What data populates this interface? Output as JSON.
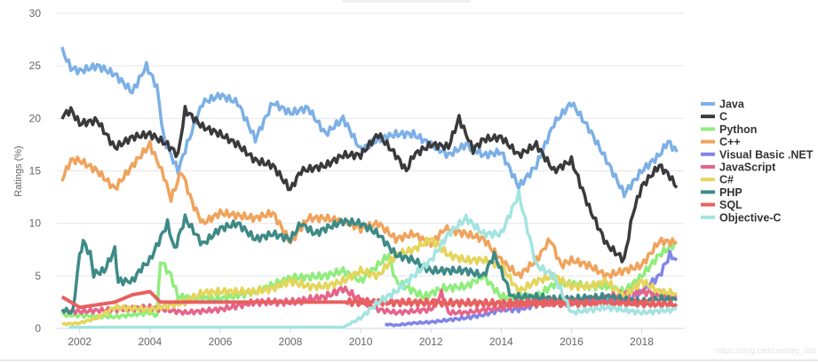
{
  "chart_data": {
    "type": "line",
    "title": "",
    "xlabel": "",
    "ylabel": "Ratings (%)",
    "xlim": [
      2001.4,
      2019.2
    ],
    "ylim": [
      0,
      30
    ],
    "yticks": [
      0,
      5,
      10,
      15,
      20,
      25,
      30
    ],
    "xticks": [
      2002,
      2004,
      2006,
      2008,
      2010,
      2012,
      2014,
      2016,
      2018
    ],
    "grid": true,
    "legend_position": "right",
    "series": [
      {
        "name": "Java",
        "color": "#7cb0e6",
        "points": [
          [
            2001.5,
            26.5
          ],
          [
            2001.75,
            24.8
          ],
          [
            2002,
            24.5
          ],
          [
            2002.5,
            25
          ],
          [
            2003,
            24.2
          ],
          [
            2003.5,
            22.5
          ],
          [
            2003.9,
            25
          ],
          [
            2004.2,
            23
          ],
          [
            2004.4,
            18
          ],
          [
            2004.8,
            15
          ],
          [
            2005,
            17
          ],
          [
            2005.5,
            21.5
          ],
          [
            2006,
            22.2
          ],
          [
            2006.5,
            21.5
          ],
          [
            2007,
            18
          ],
          [
            2007.5,
            21.5
          ],
          [
            2008,
            20.5
          ],
          [
            2008.5,
            21
          ],
          [
            2009,
            18.5
          ],
          [
            2009.5,
            20
          ],
          [
            2010,
            17
          ],
          [
            2010.5,
            18
          ],
          [
            2011,
            18.5
          ],
          [
            2011.5,
            18.5
          ],
          [
            2012,
            17.5
          ],
          [
            2012.5,
            16.5
          ],
          [
            2013,
            17.5
          ],
          [
            2013.5,
            16.5
          ],
          [
            2014,
            16.8
          ],
          [
            2014.5,
            13.5
          ],
          [
            2015,
            15.5
          ],
          [
            2015.5,
            19.5
          ],
          [
            2016,
            21.5
          ],
          [
            2016.5,
            19
          ],
          [
            2017,
            16
          ],
          [
            2017.5,
            12.8
          ],
          [
            2018,
            15
          ],
          [
            2018.5,
            16.5
          ],
          [
            2018.75,
            17.8
          ],
          [
            2019,
            16.8
          ]
        ]
      },
      {
        "name": "C",
        "color": "#3a3a3c",
        "points": [
          [
            2001.5,
            20.2
          ],
          [
            2001.75,
            20.8
          ],
          [
            2002,
            19.5
          ],
          [
            2002.5,
            19.8
          ],
          [
            2003,
            17.2
          ],
          [
            2003.5,
            18.2
          ],
          [
            2004,
            18.5
          ],
          [
            2004.5,
            17.5
          ],
          [
            2004.8,
            16.5
          ],
          [
            2005,
            20.8
          ],
          [
            2005.5,
            19.2
          ],
          [
            2006,
            18.5
          ],
          [
            2006.5,
            17.5
          ],
          [
            2007,
            16
          ],
          [
            2007.5,
            15.5
          ],
          [
            2008,
            13.2
          ],
          [
            2008.3,
            15
          ],
          [
            2009,
            15.5
          ],
          [
            2009.5,
            16.5
          ],
          [
            2010,
            16.5
          ],
          [
            2010.5,
            18.5
          ],
          [
            2011,
            16.5
          ],
          [
            2011.3,
            15
          ],
          [
            2011.5,
            16.5
          ],
          [
            2012,
            17.5
          ],
          [
            2012.5,
            17.3
          ],
          [
            2012.8,
            20
          ],
          [
            2013.2,
            17
          ],
          [
            2013.5,
            18
          ],
          [
            2014,
            18.2
          ],
          [
            2014.5,
            16.5
          ],
          [
            2015,
            17.5
          ],
          [
            2015.5,
            15
          ],
          [
            2016,
            16
          ],
          [
            2016.5,
            11.5
          ],
          [
            2017,
            8
          ],
          [
            2017.5,
            6.5
          ],
          [
            2017.75,
            11
          ],
          [
            2018,
            13.5
          ],
          [
            2018.5,
            15.5
          ],
          [
            2018.8,
            14.5
          ],
          [
            2019,
            13.4
          ]
        ]
      },
      {
        "name": "Python",
        "color": "#90ed7d",
        "points": [
          [
            2001.5,
            1.3
          ],
          [
            2003,
            1.1
          ],
          [
            2004,
            1.5
          ],
          [
            2004.2,
            1.2
          ],
          [
            2004.3,
            6.5
          ],
          [
            2004.6,
            5
          ],
          [
            2004.8,
            3
          ],
          [
            2006,
            2.8
          ],
          [
            2007,
            3.5
          ],
          [
            2008,
            4.8
          ],
          [
            2009,
            5
          ],
          [
            2009.5,
            5.5
          ],
          [
            2010,
            4.5
          ],
          [
            2010.8,
            7
          ],
          [
            2011,
            4.5
          ],
          [
            2011.8,
            3
          ],
          [
            2012.3,
            3.8
          ],
          [
            2013,
            4
          ],
          [
            2013.5,
            5
          ],
          [
            2014,
            3
          ],
          [
            2015,
            3
          ],
          [
            2015.5,
            4.2
          ],
          [
            2016,
            4.3
          ],
          [
            2016.5,
            4
          ],
          [
            2017,
            4
          ],
          [
            2017.5,
            3.5
          ],
          [
            2018,
            5
          ],
          [
            2018.5,
            7
          ],
          [
            2019,
            8.2
          ]
        ]
      },
      {
        "name": "C++",
        "color": "#f0a35c",
        "points": [
          [
            2001.5,
            14.2
          ],
          [
            2001.75,
            16
          ],
          [
            2002,
            16
          ],
          [
            2002.5,
            15
          ],
          [
            2003,
            13.3
          ],
          [
            2003.5,
            15.5
          ],
          [
            2004,
            17.5
          ],
          [
            2004.4,
            14.5
          ],
          [
            2004.6,
            12.3
          ],
          [
            2004.9,
            15
          ],
          [
            2005.2,
            12
          ],
          [
            2005.5,
            10
          ],
          [
            2006,
            11
          ],
          [
            2007,
            10.5
          ],
          [
            2007.5,
            11
          ],
          [
            2008,
            8.2
          ],
          [
            2008.5,
            10.5
          ],
          [
            2009,
            10.5
          ],
          [
            2009.5,
            10.2
          ],
          [
            2010,
            9.5
          ],
          [
            2010.5,
            10
          ],
          [
            2011,
            8.5
          ],
          [
            2011.5,
            9
          ],
          [
            2012,
            8
          ],
          [
            2012.4,
            9.5
          ],
          [
            2013,
            9
          ],
          [
            2013.5,
            8.5
          ],
          [
            2014,
            6.5
          ],
          [
            2014.5,
            5
          ],
          [
            2015,
            6.5
          ],
          [
            2015.4,
            8.5
          ],
          [
            2015.7,
            6
          ],
          [
            2016,
            6.5
          ],
          [
            2016.5,
            6
          ],
          [
            2017,
            5
          ],
          [
            2017.5,
            5.5
          ],
          [
            2018,
            6
          ],
          [
            2018.5,
            8.3
          ],
          [
            2019,
            8.2
          ]
        ]
      },
      {
        "name": "Visual Basic .NET",
        "color": "#8085e9",
        "points": [
          [
            2010.7,
            0.4
          ],
          [
            2011,
            0.3
          ],
          [
            2011.5,
            0.5
          ],
          [
            2012,
            0.6
          ],
          [
            2012.5,
            0.8
          ],
          [
            2013,
            1
          ],
          [
            2013.5,
            1.3
          ],
          [
            2014,
            1.8
          ],
          [
            2014.5,
            1.8
          ],
          [
            2015,
            2.3
          ],
          [
            2015.5,
            2.5
          ],
          [
            2016,
            2.5
          ],
          [
            2017,
            2.8
          ],
          [
            2017.5,
            2.5
          ],
          [
            2018,
            3.5
          ],
          [
            2018.5,
            5
          ],
          [
            2018.8,
            7
          ],
          [
            2019,
            6.5
          ]
        ]
      },
      {
        "name": "JavaScript",
        "color": "#e6648a",
        "points": [
          [
            2001.5,
            1.7
          ],
          [
            2002,
            1.6
          ],
          [
            2003,
            1.8
          ],
          [
            2004,
            2
          ],
          [
            2005,
            1.5
          ],
          [
            2006,
            1.8
          ],
          [
            2007,
            2.5
          ],
          [
            2008,
            2.5
          ],
          [
            2009,
            3
          ],
          [
            2009.5,
            3.8
          ],
          [
            2010,
            2.7
          ],
          [
            2010.5,
            1.8
          ],
          [
            2011,
            1.5
          ],
          [
            2012,
            1.8
          ],
          [
            2012.3,
            3.3
          ],
          [
            2012.5,
            1.5
          ],
          [
            2013,
            1.5
          ],
          [
            2014,
            2
          ],
          [
            2015,
            2.5
          ],
          [
            2016,
            2.5
          ],
          [
            2017,
            3
          ],
          [
            2018,
            3.5
          ],
          [
            2019,
            3
          ]
        ]
      },
      {
        "name": "C#",
        "color": "#e4d55c",
        "points": [
          [
            2001.5,
            0.4
          ],
          [
            2002,
            0.5
          ],
          [
            2002.5,
            1
          ],
          [
            2003,
            2
          ],
          [
            2004,
            1.8
          ],
          [
            2005,
            2.5
          ],
          [
            2005.5,
            3.4
          ],
          [
            2006,
            3.5
          ],
          [
            2007,
            3.5
          ],
          [
            2007.5,
            3.8
          ],
          [
            2008,
            4.5
          ],
          [
            2008.5,
            4
          ],
          [
            2009,
            4
          ],
          [
            2009.5,
            4.5
          ],
          [
            2010,
            5.5
          ],
          [
            2010.5,
            5
          ],
          [
            2011,
            7
          ],
          [
            2011.5,
            7.5
          ],
          [
            2012,
            8.5
          ],
          [
            2012.5,
            7
          ],
          [
            2013,
            6.5
          ],
          [
            2013.5,
            6.5
          ],
          [
            2014,
            6
          ],
          [
            2014.5,
            3.5
          ],
          [
            2015,
            4.5
          ],
          [
            2015.5,
            5
          ],
          [
            2016,
            4
          ],
          [
            2016.5,
            4
          ],
          [
            2017,
            4.5
          ],
          [
            2017.5,
            3
          ],
          [
            2018,
            4.5
          ],
          [
            2018.5,
            3.5
          ],
          [
            2019,
            3.3
          ]
        ]
      },
      {
        "name": "PHP",
        "color": "#3d8a86",
        "points": [
          [
            2001.5,
            1.8
          ],
          [
            2001.8,
            1.5
          ],
          [
            2002,
            7
          ],
          [
            2002.1,
            8.3
          ],
          [
            2002.3,
            7
          ],
          [
            2002.4,
            5.2
          ],
          [
            2002.7,
            5.5
          ],
          [
            2003,
            7.5
          ],
          [
            2003.1,
            4.5
          ],
          [
            2003.5,
            4.5
          ],
          [
            2003.75,
            5.7
          ],
          [
            2004,
            6.5
          ],
          [
            2004.5,
            10
          ],
          [
            2004.7,
            7.5
          ],
          [
            2005,
            10.5
          ],
          [
            2005.5,
            8
          ],
          [
            2006,
            9.5
          ],
          [
            2006.5,
            10
          ],
          [
            2007,
            8.5
          ],
          [
            2007.5,
            9
          ],
          [
            2008,
            8.5
          ],
          [
            2008.3,
            10
          ],
          [
            2008.7,
            9
          ],
          [
            2009,
            9.5
          ],
          [
            2009.5,
            10.2
          ],
          [
            2010,
            10
          ],
          [
            2010.5,
            9
          ],
          [
            2011,
            7
          ],
          [
            2011.5,
            6.5
          ],
          [
            2012,
            5.5
          ],
          [
            2012.5,
            5.5
          ],
          [
            2013,
            5.5
          ],
          [
            2013.5,
            5
          ],
          [
            2013.8,
            7
          ],
          [
            2014,
            5.5
          ],
          [
            2014.3,
            3
          ],
          [
            2015,
            3
          ],
          [
            2015.5,
            2.8
          ],
          [
            2016,
            2.8
          ],
          [
            2017,
            3
          ],
          [
            2018,
            2.5
          ],
          [
            2018.5,
            2.8
          ],
          [
            2019,
            2.7
          ]
        ]
      },
      {
        "name": "SQL",
        "color": "#e86060",
        "points": [
          [
            2001.5,
            3
          ],
          [
            2002,
            2
          ],
          [
            2003,
            2.5
          ],
          [
            2003.5,
            3.2
          ],
          [
            2004,
            3.5
          ],
          [
            2004.3,
            2.5
          ],
          [
            2010,
            2.5
          ],
          [
            2014,
            2.4
          ],
          [
            2018,
            2.4
          ],
          [
            2018.5,
            2.3
          ],
          [
            2019,
            2.3
          ]
        ]
      },
      {
        "name": "Objective-C",
        "color": "#a3e4df",
        "points": [
          [
            2001.7,
            0.1
          ],
          [
            2009.5,
            0.1
          ],
          [
            2010,
            1
          ],
          [
            2010.5,
            2.5
          ],
          [
            2011,
            3.5
          ],
          [
            2011.5,
            5
          ],
          [
            2012,
            6.5
          ],
          [
            2012.5,
            9
          ],
          [
            2013,
            10.5
          ],
          [
            2013.5,
            9
          ],
          [
            2014,
            9
          ],
          [
            2014.5,
            12.8
          ],
          [
            2015,
            6
          ],
          [
            2015.5,
            5
          ],
          [
            2016,
            1.5
          ],
          [
            2017,
            2
          ],
          [
            2018,
            1.5
          ],
          [
            2019,
            1.8
          ]
        ]
      }
    ]
  },
  "watermark": "https://blog.csdn.net/qq_366"
}
